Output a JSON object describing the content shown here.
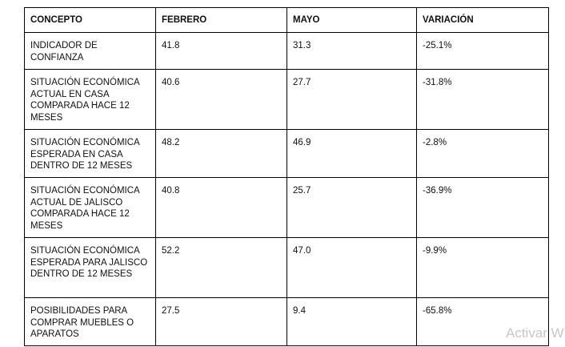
{
  "table": {
    "headers": [
      "CONCEPTO",
      "FEBRERO",
      "MAYO",
      "VARIACIÓN"
    ],
    "rows": [
      [
        "INDICADOR DE CONFIANZA",
        "41.8",
        "31.3",
        "-25.1%"
      ],
      [
        "SITUACIÓN ECONÓMICA ACTUAL EN CASA COMPARADA HACE 12 MESES",
        "40.6",
        "27.7",
        "-31.8%"
      ],
      [
        "SITUACIÓN ECONÓMICA ESPERADA EN CASA DENTRO DE 12 MESES",
        "48.2",
        "46.9",
        "-2.8%"
      ],
      [
        "SITUACIÓN ECONÓMICA ACTUAL DE JALISCO COMPARADA HACE 12 MESES",
        "40.8",
        "25.7",
        "-36.9%"
      ],
      [
        "SITUACIÓN ECONÓMICA ESPERADA PARA JALISCO DENTRO DE 12 MESES",
        "52.2",
        "47.0",
        "-9.9%"
      ],
      [
        "POSIBILIDADES PARA COMPRAR MUEBLES O APARATOS",
        "27.5",
        "9.4",
        "-65.8%"
      ]
    ]
  },
  "watermark": {
    "text": "Activar W"
  }
}
